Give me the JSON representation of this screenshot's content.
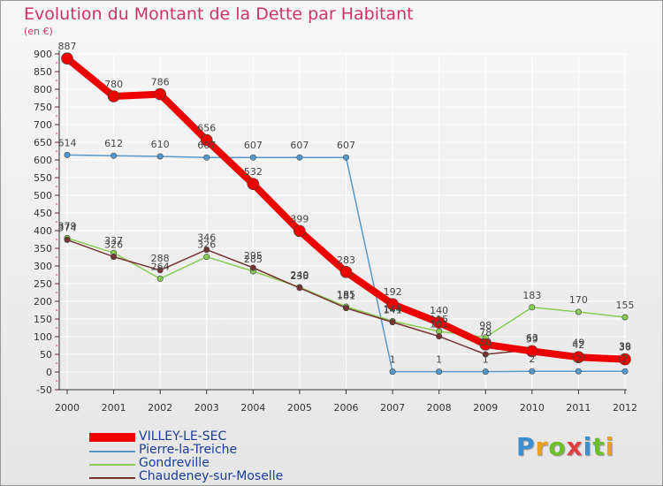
{
  "header": {
    "title": "Evolution du Montant de la Dette par Habitant",
    "unit": "(en €)"
  },
  "logo": {
    "text": "Proxiti",
    "colors": [
      "#3a8fd1",
      "#e8a020",
      "#6cbf2a",
      "#e04040",
      "#3a8fd1",
      "#6cbf2a",
      "#e8a020"
    ]
  },
  "chart_data": {
    "type": "line",
    "title": "Evolution du Montant de la Dette par Habitant",
    "ylabel": "(en €)",
    "xlabel": "",
    "x": [
      "2000",
      "2001",
      "2002",
      "2003",
      "2004",
      "2005",
      "2006",
      "2007",
      "2008",
      "2009",
      "2010",
      "2011",
      "2012"
    ],
    "ylim": [
      -50,
      900
    ],
    "yticks": [
      -50,
      0,
      50,
      100,
      150,
      200,
      250,
      300,
      350,
      400,
      450,
      500,
      550,
      600,
      650,
      700,
      750,
      800,
      850,
      900
    ],
    "grid": true,
    "legend": "bottom-left",
    "series": [
      {
        "name": "VILLEY-LE-SEC",
        "color": "#ee0000",
        "values": [
          887,
          780,
          786,
          656,
          532,
          399,
          283,
          192,
          140,
          78,
          59,
          42,
          36
        ]
      },
      {
        "name": "Pierre-la-Treiche",
        "color": "#5599cc",
        "values": [
          614,
          612,
          610,
          607,
          607,
          607,
          607,
          1,
          1,
          1,
          2,
          2,
          2
        ]
      },
      {
        "name": "Gondreville",
        "color": "#88cc55",
        "values": [
          379,
          337,
          264,
          326,
          285,
          240,
          185,
          144,
          115,
          98,
          183,
          170,
          155
        ]
      },
      {
        "name": "Chaudeney-sur-Moselle",
        "color": "#773333",
        "values": [
          374,
          326,
          288,
          346,
          295,
          238,
          181,
          141,
          101,
          50,
          63,
          49,
          39
        ]
      }
    ]
  }
}
